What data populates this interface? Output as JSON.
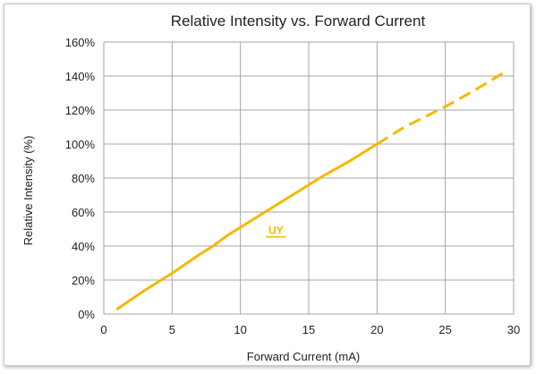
{
  "chart_data": {
    "type": "line",
    "title": "Relative Intensity vs. Forward Current",
    "xlabel": "Forward Current (mA)",
    "ylabel": "Relative Intensity (%)",
    "xlim": [
      0,
      30
    ],
    "ylim": [
      0,
      160
    ],
    "x_ticks": [
      "0",
      "5",
      "10",
      "15",
      "20",
      "25",
      "30"
    ],
    "y_ticks": [
      "0%",
      "20%",
      "40%",
      "60%",
      "80%",
      "100%",
      "120%",
      "140%",
      "160%"
    ],
    "grid": true,
    "series": [
      {
        "name": "UY",
        "color": "#f5b800",
        "solid": {
          "x": [
            1,
            3,
            5,
            7,
            8,
            9,
            10,
            12,
            13,
            14,
            15,
            16,
            18,
            20
          ],
          "y": [
            3,
            14,
            24,
            35,
            40,
            46,
            51,
            61,
            66,
            71,
            76,
            81,
            90,
            100
          ]
        },
        "dashed": {
          "x": [
            20,
            22,
            25,
            27,
            29.5
          ],
          "y": [
            100,
            110,
            122,
            131,
            143
          ]
        }
      }
    ]
  }
}
